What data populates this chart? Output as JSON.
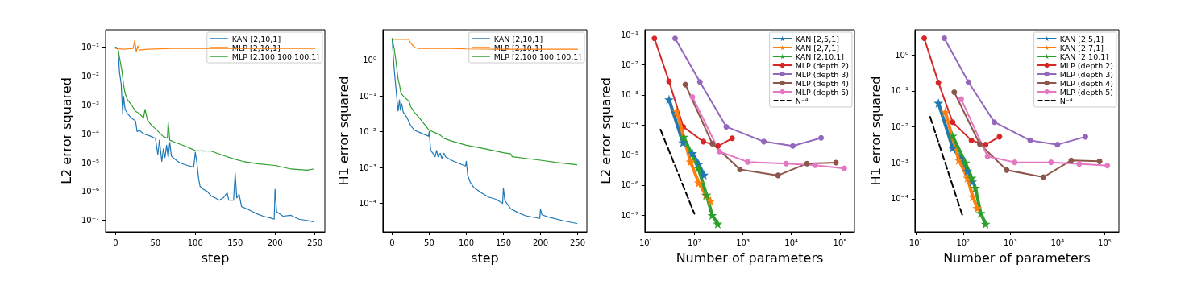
{
  "chart_data": [
    {
      "type": "line",
      "xlabel": "step",
      "ylabel": "L2 error squared",
      "log": "y",
      "legend": "top right",
      "xlim": [
        -12.5,
        262.5
      ],
      "xticks": [
        0,
        50,
        100,
        150,
        200,
        250
      ],
      "ylim": [
        4e-08,
        0.4
      ],
      "yticks": [
        {
          "value": 1e-07,
          "label": "10⁻⁷"
        },
        {
          "value": 1e-06,
          "label": "10⁻⁶"
        },
        {
          "value": 1e-05,
          "label": "10⁻⁵"
        },
        {
          "value": 0.0001,
          "label": "10⁻⁴"
        },
        {
          "value": 0.001,
          "label": "10⁻³"
        },
        {
          "value": 0.01,
          "label": "10⁻²"
        },
        {
          "value": 0.1,
          "label": "10⁻¹"
        }
      ],
      "series": [
        {
          "name": "KAN [2,10,1]",
          "color": "#1f77b4",
          "x": [
            0,
            3,
            5,
            7,
            9,
            10,
            12,
            15,
            20,
            25,
            27,
            30,
            35,
            40,
            45,
            50,
            53,
            55,
            58,
            60,
            62,
            64,
            66,
            68,
            70,
            72,
            80,
            90,
            98,
            100,
            102,
            104,
            106,
            110,
            115,
            120,
            125,
            130,
            135,
            140,
            142,
            145,
            148,
            150,
            152,
            155,
            158,
            165,
            175,
            185,
            195,
            199,
            200,
            202,
            210,
            220,
            230,
            240,
            248
          ],
          "values": [
            0.1,
            0.09,
            0.013,
            0.0055,
            0.00047,
            0.002,
            0.0007,
            0.0005,
            0.00035,
            0.00028,
            0.00012,
            0.00013,
            0.0001,
            9e-05,
            8e-05,
            6.9e-05,
            1.9e-05,
            6e-05,
            1.1e-05,
            3e-05,
            1.5e-05,
            4e-05,
            1.5e-05,
            5e-05,
            1.7e-05,
            1.5e-05,
            1e-05,
            8e-06,
            7e-06,
            2.3e-05,
            1e-05,
            3e-06,
            1.5e-06,
            1.2e-06,
            1e-06,
            7e-07,
            6e-07,
            5e-07,
            6e-07,
            9e-07,
            5e-07,
            5e-07,
            5e-07,
            4.3e-06,
            6e-07,
            8e-07,
            3e-07,
            2.5e-07,
            1.8e-07,
            1.4e-07,
            1.2e-07,
            1.1e-07,
            1.2e-06,
            2e-07,
            1.4e-07,
            1.5e-07,
            1.1e-07,
            1e-07,
            9e-08
          ]
        },
        {
          "name": "MLP [2,10,1]",
          "color": "#ff7f0e",
          "x": [
            0,
            10,
            22,
            24,
            26,
            28,
            30,
            40,
            70,
            250
          ],
          "values": [
            0.09,
            0.085,
            0.09,
            0.17,
            0.07,
            0.11,
            0.08,
            0.085,
            0.09,
            0.09
          ]
        },
        {
          "name": "MLP [2,100,100,100,1]",
          "color": "#2ca02c",
          "x": [
            0,
            3,
            6,
            8,
            10,
            12,
            15,
            20,
            25,
            30,
            35,
            37,
            40,
            45,
            50,
            60,
            65,
            66,
            68,
            75,
            90,
            100,
            120,
            140,
            150,
            160,
            180,
            200,
            220,
            240,
            248
          ],
          "values": [
            0.1,
            0.09,
            0.03,
            0.015,
            0.005,
            0.0025,
            0.0015,
            0.001,
            0.0006,
            0.0005,
            0.00035,
            0.0007,
            0.0003,
            0.0002,
            0.00015,
            8e-05,
            7e-05,
            0.00025,
            6e-05,
            5e-05,
            3.5e-05,
            2.6e-05,
            2.5e-05,
            1.6e-05,
            1.3e-05,
            1.1e-05,
            9e-06,
            8e-06,
            6e-06,
            5.5e-06,
            6e-06
          ]
        }
      ]
    },
    {
      "type": "line",
      "xlabel": "step",
      "ylabel": "H1 error squared",
      "log": "y",
      "legend": "top right",
      "xlim": [
        -12.5,
        262.5
      ],
      "xticks": [
        0,
        50,
        100,
        150,
        200,
        250
      ],
      "ylim": [
        1.6e-05,
        7
      ],
      "yticks": [
        {
          "value": 0.0001,
          "label": "10⁻⁴"
        },
        {
          "value": 0.001,
          "label": "10⁻³"
        },
        {
          "value": 0.01,
          "label": "10⁻²"
        },
        {
          "value": 0.1,
          "label": "10⁻¹"
        },
        {
          "value": 1,
          "label": "10⁰"
        }
      ],
      "series": [
        {
          "name": "KAN [2,10,1]",
          "color": "#1f77b4",
          "x": [
            0,
            3,
            8,
            10,
            11,
            13,
            15,
            20,
            25,
            30,
            40,
            49,
            50,
            52,
            55,
            58,
            60,
            62,
            65,
            67,
            70,
            72,
            80,
            90,
            99,
            100,
            102,
            105,
            110,
            120,
            130,
            140,
            149,
            150,
            152,
            160,
            170,
            180,
            199,
            200,
            202,
            210,
            230,
            249
          ],
          "values": [
            4,
            0.5,
            0.038,
            0.077,
            0.04,
            0.06,
            0.035,
            0.025,
            0.015,
            0.011,
            0.009,
            0.0075,
            0.01,
            0.003,
            0.0025,
            0.002,
            0.003,
            0.002,
            0.0025,
            0.0018,
            0.0025,
            0.002,
            0.0016,
            0.0013,
            0.0011,
            0.0015,
            0.0006,
            0.0004,
            0.00028,
            0.0002,
            0.00015,
            0.00013,
            0.0001,
            0.00027,
            0.00012,
            7e-05,
            5.5e-05,
            4.5e-05,
            3.8e-05,
            6.8e-05,
            4.8e-05,
            4.2e-05,
            3.3e-05,
            2.75e-05
          ]
        },
        {
          "name": "MLP [2,10,1]",
          "color": "#ff7f0e",
          "x": [
            0,
            22,
            25,
            30,
            35,
            70,
            100,
            150,
            250
          ],
          "values": [
            3.8,
            3.8,
            3,
            2.3,
            2.1,
            2.15,
            2.05,
            2,
            2
          ]
        },
        {
          "name": "MLP [2,100,100,100,1]",
          "color": "#2ca02c",
          "x": [
            0,
            3,
            5,
            8,
            10,
            12,
            15,
            20,
            23,
            25,
            30,
            40,
            50,
            60,
            65,
            70,
            80,
            100,
            120,
            150,
            160,
            162,
            180,
            200,
            220,
            249
          ],
          "values": [
            4,
            2,
            1,
            0.3,
            0.2,
            0.12,
            0.1,
            0.08,
            0.07,
            0.05,
            0.035,
            0.02,
            0.011,
            0.009,
            0.008,
            0.0065,
            0.0055,
            0.0042,
            0.0035,
            0.0026,
            0.0024,
            0.002,
            0.0018,
            0.0016,
            0.0014,
            0.0012
          ]
        }
      ]
    },
    {
      "type": "line",
      "xlabel": "Number of parameters",
      "ylabel": "L2 error squared",
      "log": "xy",
      "legend": "top right",
      "xlim": [
        9.5,
        200000
      ],
      "xticks": [
        {
          "value": 10,
          "label": "10¹"
        },
        {
          "value": 100,
          "label": "10²"
        },
        {
          "value": 1000,
          "label": "10³"
        },
        {
          "value": 10000,
          "label": "10⁴"
        },
        {
          "value": 100000,
          "label": "10⁵"
        }
      ],
      "ylim": [
        2.8e-08,
        0.145
      ],
      "yticks": [
        {
          "value": 1e-07,
          "label": "10⁻⁷"
        },
        {
          "value": 1e-06,
          "label": "10⁻⁶"
        },
        {
          "value": 1e-05,
          "label": "10⁻⁵"
        },
        {
          "value": 0.0001,
          "label": "10⁻⁴"
        },
        {
          "value": 0.001,
          "label": "10⁻³"
        },
        {
          "value": 0.01,
          "label": "10⁻²"
        },
        {
          "value": 0.1,
          "label": "10⁻¹"
        }
      ],
      "series": [
        {
          "name": "KAN [2,5,1]",
          "color": "#1f77b4",
          "marker": "star",
          "x": [
            30,
            58,
            91,
            123,
            157
          ],
          "values": [
            0.0007,
            2.6e-05,
            1.15e-05,
            5e-06,
            2.2e-06
          ]
        },
        {
          "name": "KAN [2,7,1]",
          "color": "#ff7f0e",
          "marker": "star",
          "x": [
            43,
            83,
            123,
            172,
            215
          ],
          "values": [
            0.00029,
            6e-06,
            1.2e-06,
            4.7e-07,
            3e-07
          ]
        },
        {
          "name": "KAN [2,10,1]",
          "color": "#2ca02c",
          "marker": "star",
          "x": [
            60,
            120,
            178,
            233,
            303
          ],
          "values": [
            4e-05,
            3.7e-06,
            4.7e-07,
            1e-07,
            5.2e-08
          ]
        },
        {
          "name": "MLP (depth 2)",
          "color": "#d62728",
          "marker": "circle",
          "x": [
            15,
            30,
            59,
            153,
            308,
            600
          ],
          "values": [
            0.075,
            0.0028,
            8.7e-05,
            2.8e-05,
            2e-05,
            3.6e-05
          ]
        },
        {
          "name": "MLP (depth 3)",
          "color": "#9467bd",
          "marker": "circle",
          "x": [
            40,
            130,
            455,
            2700,
            10700,
            41000
          ],
          "values": [
            0.075,
            0.0027,
            8.7e-05,
            2.8e-05,
            2e-05,
            3.7e-05
          ]
        },
        {
          "name": "MLP (depth 4)",
          "color": "#8c564b",
          "marker": "circle",
          "x": [
            65,
            234,
            870,
            5300,
            21000,
            83000
          ],
          "values": [
            0.0022,
            2.4e-05,
            3.3e-06,
            2.1e-06,
            5.2e-06,
            5.6e-06
          ]
        },
        {
          "name": "MLP (depth 5)",
          "color": "#e377c2",
          "marker": "circle",
          "x": [
            91,
            328,
            1260,
            7800,
            31000,
            123000
          ],
          "values": [
            0.00085,
            1.3e-05,
            5.9e-06,
            5.2e-06,
            4.6e-06,
            3.6e-06
          ]
        },
        {
          "name": "N⁻⁴",
          "color": "#000000",
          "marker": "none",
          "line_style": "dashed",
          "x": [
            20,
            100
          ],
          "values": [
            7e-05,
            1.12e-07
          ]
        }
      ]
    },
    {
      "type": "line",
      "xlabel": "Number of parameters",
      "ylabel": "H1 error squared",
      "log": "xy",
      "legend": "top right",
      "xlim": [
        9.5,
        200000
      ],
      "xticks": [
        {
          "value": 10,
          "label": "10¹"
        },
        {
          "value": 100,
          "label": "10²"
        },
        {
          "value": 1000,
          "label": "10³"
        },
        {
          "value": 10000,
          "label": "10⁴"
        },
        {
          "value": 100000,
          "label": "10⁵"
        }
      ],
      "ylim": [
        1.2e-05,
        5
      ],
      "yticks": [
        {
          "value": 0.0001,
          "label": "10⁻⁴"
        },
        {
          "value": 0.001,
          "label": "10⁻³"
        },
        {
          "value": 0.01,
          "label": "10⁻²"
        },
        {
          "value": 0.1,
          "label": "10⁻¹"
        },
        {
          "value": 1,
          "label": "10⁰"
        }
      ],
      "series": [
        {
          "name": "KAN [2,5,1]",
          "color": "#1f77b4",
          "marker": "star",
          "x": [
            30,
            60,
            91,
            123,
            157
          ],
          "values": [
            0.046,
            0.0026,
            0.0013,
            0.0006,
            0.0003
          ]
        },
        {
          "name": "KAN [2,7,1]",
          "color": "#ff7f0e",
          "marker": "star",
          "x": [
            42,
            81,
            124,
            160,
            200
          ],
          "values": [
            0.026,
            0.0012,
            0.00038,
            0.000115,
            5.5e-05
          ]
        },
        {
          "name": "KAN [2,10,1]",
          "color": "#2ca02c",
          "marker": "star",
          "x": [
            60,
            112,
            152,
            182,
            236,
            300
          ],
          "values": [
            0.0056,
            0.001,
            0.00038,
            0.0002,
            4e-05,
            2e-05
          ]
        },
        {
          "name": "MLP (depth 2)",
          "color": "#d62728",
          "marker": "circle",
          "x": [
            15,
            30,
            60,
            150,
            300,
            590
          ],
          "values": [
            2.9,
            0.17,
            0.0135,
            0.0042,
            0.0032,
            0.0053
          ]
        },
        {
          "name": "MLP (depth 3)",
          "color": "#9467bd",
          "marker": "circle",
          "x": [
            40,
            130,
            460,
            2650,
            10000,
            39000
          ],
          "values": [
            2.9,
            0.175,
            0.0135,
            0.0042,
            0.0032,
            0.0053
          ]
        },
        {
          "name": "MLP (depth 4)",
          "color": "#8c564b",
          "marker": "circle",
          "x": [
            65,
            226,
            840,
            5050,
            19600,
            78000
          ],
          "values": [
            0.092,
            0.0033,
            0.00063,
            0.0004,
            0.00117,
            0.0011
          ]
        },
        {
          "name": "MLP (depth 5)",
          "color": "#e377c2",
          "marker": "circle",
          "x": [
            91,
            330,
            1240,
            7300,
            29000,
            114000
          ],
          "values": [
            0.059,
            0.0015,
            0.00103,
            0.00103,
            0.00093,
            0.00083
          ]
        },
        {
          "name": "N⁻⁴",
          "color": "#000000",
          "marker": "none",
          "line_style": "dashed",
          "x": [
            20,
            100
          ],
          "values": [
            0.019,
            3e-05
          ]
        }
      ]
    }
  ]
}
